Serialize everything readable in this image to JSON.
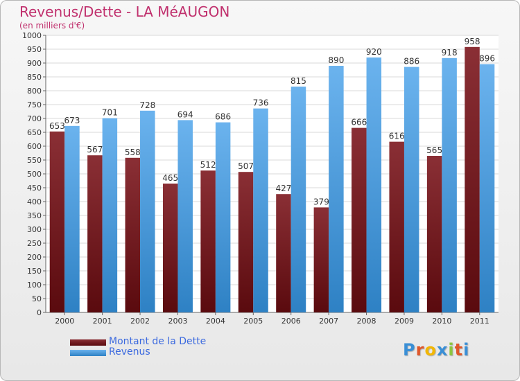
{
  "title": "Revenus/Dette - LA MéAUGON",
  "subtitle": "(en milliers d'€)",
  "colors": {
    "title": "#c0306d",
    "dette_top": "#8a2f35",
    "dette_bottom": "#5a0a0e",
    "revenus_top": "#6bb3ee",
    "revenus_bottom": "#2e81c4",
    "legend_text": "#3c6adf"
  },
  "logo": {
    "letters": [
      "P",
      "r",
      "o",
      "x",
      "i",
      "t",
      "i"
    ],
    "colors": [
      "#3a8fd6",
      "#e0582b",
      "#f2b705",
      "#3a8fd6",
      "#8cc63f",
      "#e0582b",
      "#3a8fd6"
    ]
  },
  "chart_data": {
    "type": "bar",
    "categories": [
      "2000",
      "2001",
      "2002",
      "2003",
      "2004",
      "2005",
      "2006",
      "2007",
      "2008",
      "2009",
      "2010",
      "2011"
    ],
    "series": [
      {
        "name": "Montant de la Dette",
        "values": [
          653,
          567,
          558,
          465,
          512,
          507,
          427,
          379,
          666,
          616,
          565,
          958
        ]
      },
      {
        "name": "Revenus",
        "values": [
          673,
          701,
          728,
          694,
          686,
          736,
          815,
          890,
          920,
          886,
          918,
          896
        ]
      }
    ],
    "ylim": [
      0,
      1000
    ],
    "ytick_step": 50,
    "grid": true,
    "legend_position": "bottom-left"
  }
}
